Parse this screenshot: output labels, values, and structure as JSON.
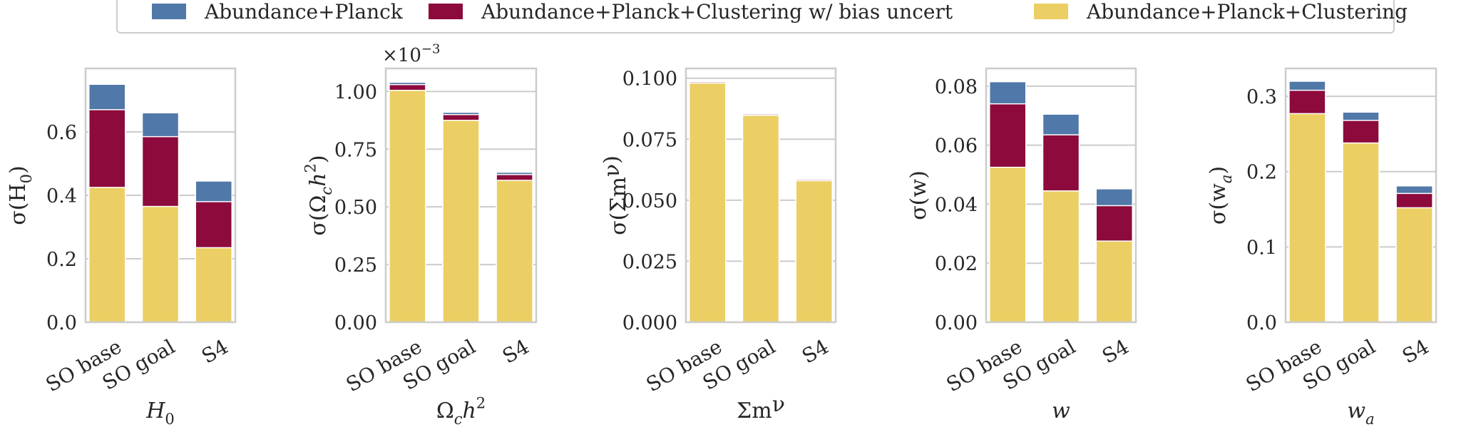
{
  "colors": {
    "abundance_planck": "#5078a8",
    "with_bias_uncert": "#8c0a3c",
    "with_clustering": "#ebcf64",
    "grid": "#cccccc",
    "axes_edge": "#cccccc",
    "text": "#262626"
  },
  "legend": {
    "entries": [
      {
        "label": "Abundance+Planck",
        "color_key": "abundance_planck"
      },
      {
        "label": "Abundance+Planck+Clustering w/ bias uncert",
        "color_key": "with_bias_uncert"
      },
      {
        "label": "Abundance+Planck+Clustering",
        "color_key": "with_clustering"
      }
    ]
  },
  "chart_data": [
    {
      "type": "bar",
      "stacked": "overlay",
      "categories": [
        "SO base",
        "SO goal",
        "S4"
      ],
      "xlabel": "H_0",
      "ylabel": "σ(H_0)",
      "ylim": [
        0,
        0.8
      ],
      "yticks": [
        0.0,
        0.2,
        0.4,
        0.6
      ],
      "ytick_labels": [
        "0.0",
        "0.2",
        "0.4",
        "0.6"
      ],
      "exponent_label": "",
      "series": [
        {
          "name": "Abundance+Planck",
          "values": [
            0.75,
            0.66,
            0.445
          ]
        },
        {
          "name": "Abundance+Planck+Clustering w/ bias uncert",
          "values": [
            0.67,
            0.585,
            0.38
          ]
        },
        {
          "name": "Abundance+Planck+Clustering",
          "values": [
            0.425,
            0.365,
            0.235
          ]
        }
      ]
    },
    {
      "type": "bar",
      "stacked": "overlay",
      "categories": [
        "SO base",
        "SO goal",
        "S4"
      ],
      "xlabel": "Ω_c h^2",
      "ylabel": "σ(Ω_c h^2)",
      "ylim": [
        0,
        1.1
      ],
      "yticks": [
        0.0,
        0.25,
        0.5,
        0.75,
        1.0
      ],
      "ytick_labels": [
        "0.00",
        "0.25",
        "0.50",
        "0.75",
        "1.00"
      ],
      "exponent_label": "×10^−3",
      "series": [
        {
          "name": "Abundance+Planck",
          "values": [
            1.04,
            0.91,
            0.65
          ]
        },
        {
          "name": "Abundance+Planck+Clustering w/ bias uncert",
          "values": [
            1.03,
            0.9,
            0.64
          ]
        },
        {
          "name": "Abundance+Planck+Clustering",
          "values": [
            1.005,
            0.875,
            0.615
          ]
        }
      ]
    },
    {
      "type": "bar",
      "stacked": "overlay",
      "categories": [
        "SO base",
        "SO goal",
        "S4"
      ],
      "xlabel": "Σm_ν",
      "ylabel": "σ(Σm_ν)",
      "ylim": [
        0,
        0.104
      ],
      "yticks": [
        0.0,
        0.025,
        0.05,
        0.075,
        0.1
      ],
      "ytick_labels": [
        "0.000",
        "0.025",
        "0.050",
        "0.075",
        "0.100"
      ],
      "exponent_label": "",
      "series": [
        {
          "name": "Abundance+Planck",
          "values": [
            0.0988,
            0.0856,
            0.0588
          ]
        },
        {
          "name": "Abundance+Planck+Clustering w/ bias uncert",
          "values": [
            0.0985,
            0.0853,
            0.0585
          ]
        },
        {
          "name": "Abundance+Planck+Clustering",
          "values": [
            0.098,
            0.0848,
            0.058
          ]
        }
      ]
    },
    {
      "type": "bar",
      "stacked": "overlay",
      "categories": [
        "SO base",
        "SO goal",
        "S4"
      ],
      "xlabel": "w",
      "ylabel": "σ(w)",
      "ylim": [
        0,
        0.086
      ],
      "yticks": [
        0.0,
        0.02,
        0.04,
        0.06,
        0.08
      ],
      "ytick_labels": [
        "0.00",
        "0.02",
        "0.04",
        "0.06",
        "0.08"
      ],
      "exponent_label": "",
      "series": [
        {
          "name": "Abundance+Planck",
          "values": [
            0.0815,
            0.0705,
            0.0452
          ]
        },
        {
          "name": "Abundance+Planck+Clustering w/ bias uncert",
          "values": [
            0.074,
            0.0635,
            0.0395
          ]
        },
        {
          "name": "Abundance+Planck+Clustering",
          "values": [
            0.0525,
            0.0445,
            0.0275
          ]
        }
      ]
    },
    {
      "type": "bar",
      "stacked": "overlay",
      "categories": [
        "SO base",
        "SO goal",
        "S4"
      ],
      "xlabel": "w_a",
      "ylabel": "σ(w_a)",
      "ylim": [
        0,
        0.337
      ],
      "yticks": [
        0.0,
        0.1,
        0.2,
        0.3
      ],
      "ytick_labels": [
        "0.0",
        "0.1",
        "0.2",
        "0.3"
      ],
      "exponent_label": "",
      "series": [
        {
          "name": "Abundance+Planck",
          "values": [
            0.32,
            0.279,
            0.181
          ]
        },
        {
          "name": "Abundance+Planck+Clustering w/ bias uncert",
          "values": [
            0.308,
            0.268,
            0.171
          ]
        },
        {
          "name": "Abundance+Planck+Clustering",
          "values": [
            0.277,
            0.238,
            0.152
          ]
        }
      ]
    }
  ]
}
